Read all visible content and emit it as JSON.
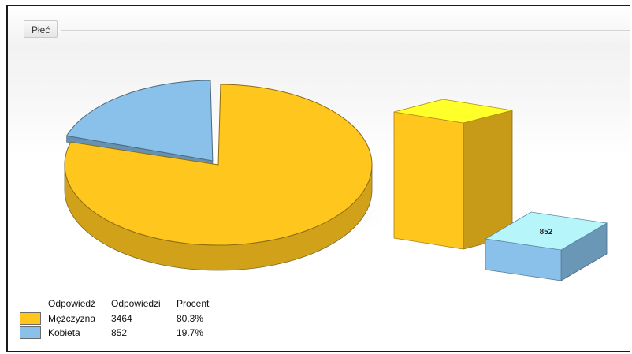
{
  "section": {
    "title": "Płeć"
  },
  "legend": {
    "headers": [
      "Odpowiedź",
      "Odpowiedzi",
      "Procent"
    ],
    "rows": [
      {
        "label": "Mężczyzna",
        "count": "3464",
        "percent": "80.3%",
        "color": "#ffc61e"
      },
      {
        "label": "Kobieta",
        "count": "852",
        "percent": "19.7%",
        "color": "#89c1ea"
      }
    ]
  },
  "chart_data": [
    {
      "type": "pie",
      "labels": [
        "Mężczyzna",
        "Kobieta"
      ],
      "values": [
        3464,
        852
      ],
      "percentages": [
        80.3,
        19.7
      ],
      "colors": [
        "#ffc61e",
        "#89c1ea"
      ],
      "exploded": "Kobieta",
      "style": "3d"
    },
    {
      "type": "bar",
      "categories": [
        "Mężczyzna",
        "Kobieta"
      ],
      "values": [
        3464,
        852
      ],
      "data_labels": [
        "",
        "852"
      ],
      "colors": [
        "#ffc61e",
        "#89c1ea"
      ],
      "style": "3d"
    }
  ]
}
